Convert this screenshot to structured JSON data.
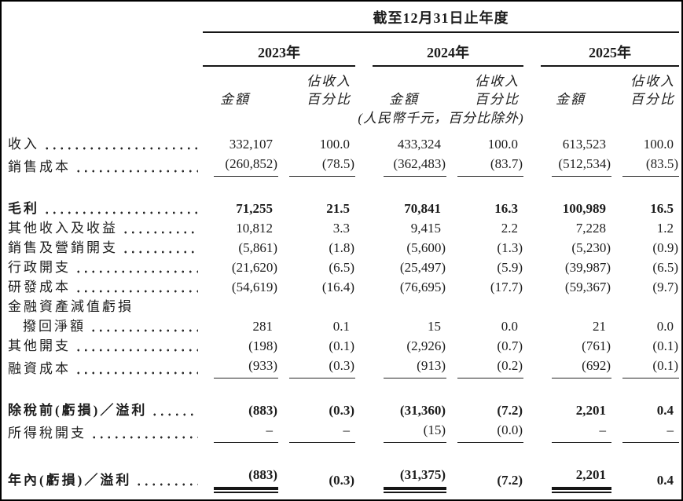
{
  "page": {
    "background_color": "#ffffff",
    "frame_color": "#000000",
    "text_color": "#1c1c1c"
  },
  "table": {
    "title": "截至12月31日止年度",
    "unit_note": "(人民幣千元，百分比除外)",
    "years": [
      "2023年",
      "2024年",
      "2025年"
    ],
    "col_headers": {
      "amount": "金額",
      "pct_line1": "佔收入",
      "pct_line2": "百分比"
    },
    "rows": [
      {
        "label": "收入",
        "dots": true,
        "bold": false,
        "indent": false,
        "rule": "none",
        "values": [
          "332,107",
          "100.0",
          "433,324",
          "100.0",
          "613,523",
          "100.0"
        ]
      },
      {
        "label": "銷售成本",
        "dots": true,
        "bold": false,
        "indent": false,
        "rule": "single",
        "values": [
          "(260,852)",
          "(78.5)",
          "(362,483)",
          "(83.7)",
          "(512,534)",
          "(83.5)"
        ]
      },
      {
        "spacer": true
      },
      {
        "label": "毛利",
        "dots": true,
        "bold": true,
        "indent": false,
        "rule": "none",
        "values": [
          "71,255",
          "21.5",
          "70,841",
          "16.3",
          "100,989",
          "16.5"
        ]
      },
      {
        "label": "其他收入及收益",
        "dots": true,
        "bold": false,
        "indent": false,
        "rule": "none",
        "values": [
          "10,812",
          "3.3",
          "9,415",
          "2.2",
          "7,228",
          "1.2"
        ]
      },
      {
        "label": "銷售及營銷開支",
        "dots": true,
        "bold": false,
        "indent": false,
        "rule": "none",
        "values": [
          "(5,861)",
          "(1.8)",
          "(5,600)",
          "(1.3)",
          "(5,230)",
          "(0.9)"
        ]
      },
      {
        "label": "行政開支",
        "dots": true,
        "bold": false,
        "indent": false,
        "rule": "none",
        "values": [
          "(21,620)",
          "(6.5)",
          "(25,497)",
          "(5.9)",
          "(39,987)",
          "(6.5)"
        ]
      },
      {
        "label": "研發成本",
        "dots": true,
        "bold": false,
        "indent": false,
        "rule": "none",
        "values": [
          "(54,619)",
          "(16.4)",
          "(76,695)",
          "(17.7)",
          "(59,367)",
          "(9.7)"
        ]
      },
      {
        "label": "金融資產減值虧損",
        "dots": false,
        "bold": false,
        "indent": false,
        "rule": "none",
        "values": [
          "",
          "",
          "",
          "",
          "",
          ""
        ]
      },
      {
        "label": "撥回淨額",
        "dots": true,
        "bold": false,
        "indent": true,
        "rule": "none",
        "values": [
          "281",
          "0.1",
          "15",
          "0.0",
          "21",
          "0.0"
        ]
      },
      {
        "label": "其他開支",
        "dots": true,
        "bold": false,
        "indent": false,
        "rule": "none",
        "values": [
          "(198)",
          "(0.1)",
          "(2,926)",
          "(0.7)",
          "(761)",
          "(0.1)"
        ]
      },
      {
        "label": "融資成本",
        "dots": true,
        "bold": false,
        "indent": false,
        "rule": "single",
        "values": [
          "(933)",
          "(0.3)",
          "(913)",
          "(0.2)",
          "(692)",
          "(0.1)"
        ]
      },
      {
        "spacer": true
      },
      {
        "label": "除稅前(虧損)／溢利",
        "dots": true,
        "bold": true,
        "indent": false,
        "rule": "none",
        "values": [
          "(883)",
          "(0.3)",
          "(31,360)",
          "(7.2)",
          "2,201",
          "0.4"
        ]
      },
      {
        "label": "所得稅開支",
        "dots": true,
        "bold": false,
        "indent": false,
        "rule": "single",
        "values": [
          "–",
          "–",
          "(15)",
          "(0.0)",
          "–",
          "–"
        ]
      },
      {
        "spacer": true
      },
      {
        "label": "年內(虧損)／溢利",
        "dots": true,
        "bold": true,
        "indent": false,
        "rule": "double-amounts",
        "values": [
          "(883)",
          "(0.3)",
          "(31,375)",
          "(7.2)",
          "2,201",
          "0.4"
        ]
      }
    ]
  }
}
